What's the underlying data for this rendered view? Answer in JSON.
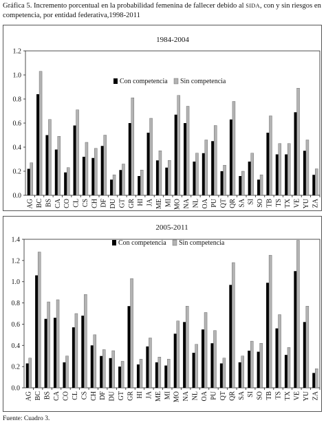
{
  "caption": {
    "part1": "Gráfica 5. Incremento porcentual en la probabilidad femenina de fallecer debido al ",
    "sida": "SIDA",
    "part2": ", con y sin riesgos en competencia, por entidad federativa,1998-2011"
  },
  "source": "Fuente: Cuadro 3.",
  "colors": {
    "con": "#000000",
    "sin": "#b3b3b3",
    "sin_border": "#555555"
  },
  "chart_data": [
    {
      "type": "bar",
      "title": "1984-2004",
      "categories": [
        "AG",
        "BC",
        "BS",
        "CA",
        "CO",
        "CL",
        "CS",
        "CH",
        "DF",
        "DU",
        "GT",
        "GR",
        "HI",
        "JA",
        "ME",
        "MI",
        "MO",
        "NA",
        "NL",
        "OA",
        "PU",
        "QT",
        "QR",
        "SA",
        "SI",
        "SO",
        "TB",
        "TS",
        "TX",
        "VE",
        "YU",
        "ZA"
      ],
      "series": [
        {
          "name": "Con competencia",
          "values": [
            0.22,
            0.84,
            0.5,
            0.38,
            0.19,
            0.58,
            0.32,
            0.31,
            0.41,
            0.13,
            0.21,
            0.6,
            0.16,
            0.52,
            0.29,
            0.23,
            0.67,
            0.6,
            0.28,
            0.35,
            0.45,
            0.2,
            0.63,
            0.16,
            0.28,
            0.13,
            0.52,
            0.34,
            0.34,
            0.69,
            0.37,
            0.17
          ]
        },
        {
          "name": "Sin competencia",
          "values": [
            0.27,
            1.03,
            0.63,
            0.49,
            0.23,
            0.71,
            0.44,
            0.39,
            0.5,
            0.17,
            0.26,
            0.81,
            0.21,
            0.64,
            0.37,
            0.29,
            0.83,
            0.74,
            0.35,
            0.46,
            0.58,
            0.25,
            0.78,
            0.2,
            0.35,
            0.17,
            0.66,
            0.43,
            0.43,
            0.89,
            0.46,
            0.22
          ]
        }
      ],
      "ylim": [
        0,
        1.2
      ],
      "yticks": [
        "0.0",
        "0.2",
        "0.4",
        "0.6",
        "0.8",
        "1.0",
        "1.2"
      ],
      "legend": "top-center"
    },
    {
      "type": "bar",
      "title": "2005-2011",
      "categories": [
        "AG",
        "BC",
        "BS",
        "CA",
        "CO",
        "CL",
        "CS",
        "CH",
        "DF",
        "DU",
        "GT",
        "GR",
        "HI",
        "JA",
        "ME",
        "MI",
        "MO",
        "NA",
        "NL",
        "OA",
        "PU",
        "QT",
        "QR",
        "SA",
        "SI",
        "SO",
        "TB",
        "TS",
        "TX",
        "VE",
        "YU",
        "ZA"
      ],
      "series": [
        {
          "name": "Con competencia",
          "values": [
            0.23,
            1.06,
            0.65,
            0.66,
            0.24,
            0.57,
            0.68,
            0.4,
            0.3,
            0.28,
            0.2,
            0.77,
            0.22,
            0.39,
            0.24,
            0.21,
            0.51,
            0.62,
            0.33,
            0.55,
            0.42,
            0.23,
            0.97,
            0.24,
            0.35,
            0.34,
            0.99,
            0.56,
            0.31,
            1.1,
            0.62,
            0.14
          ]
        },
        {
          "name": "Sin competencia",
          "values": [
            0.28,
            1.28,
            0.81,
            0.83,
            0.3,
            0.7,
            0.88,
            0.5,
            0.36,
            0.35,
            0.25,
            1.03,
            0.27,
            0.47,
            0.29,
            0.27,
            0.63,
            0.77,
            0.41,
            0.71,
            0.54,
            0.28,
            1.18,
            0.3,
            0.44,
            0.42,
            1.25,
            0.69,
            0.38,
            1.39,
            0.77,
            0.18
          ]
        }
      ],
      "ylim": [
        0,
        1.4
      ],
      "yticks": [
        "0.0",
        "0.2",
        "0.4",
        "0.6",
        "0.8",
        "1.0",
        "1.2",
        "1.4"
      ],
      "legend": "top-center"
    }
  ]
}
